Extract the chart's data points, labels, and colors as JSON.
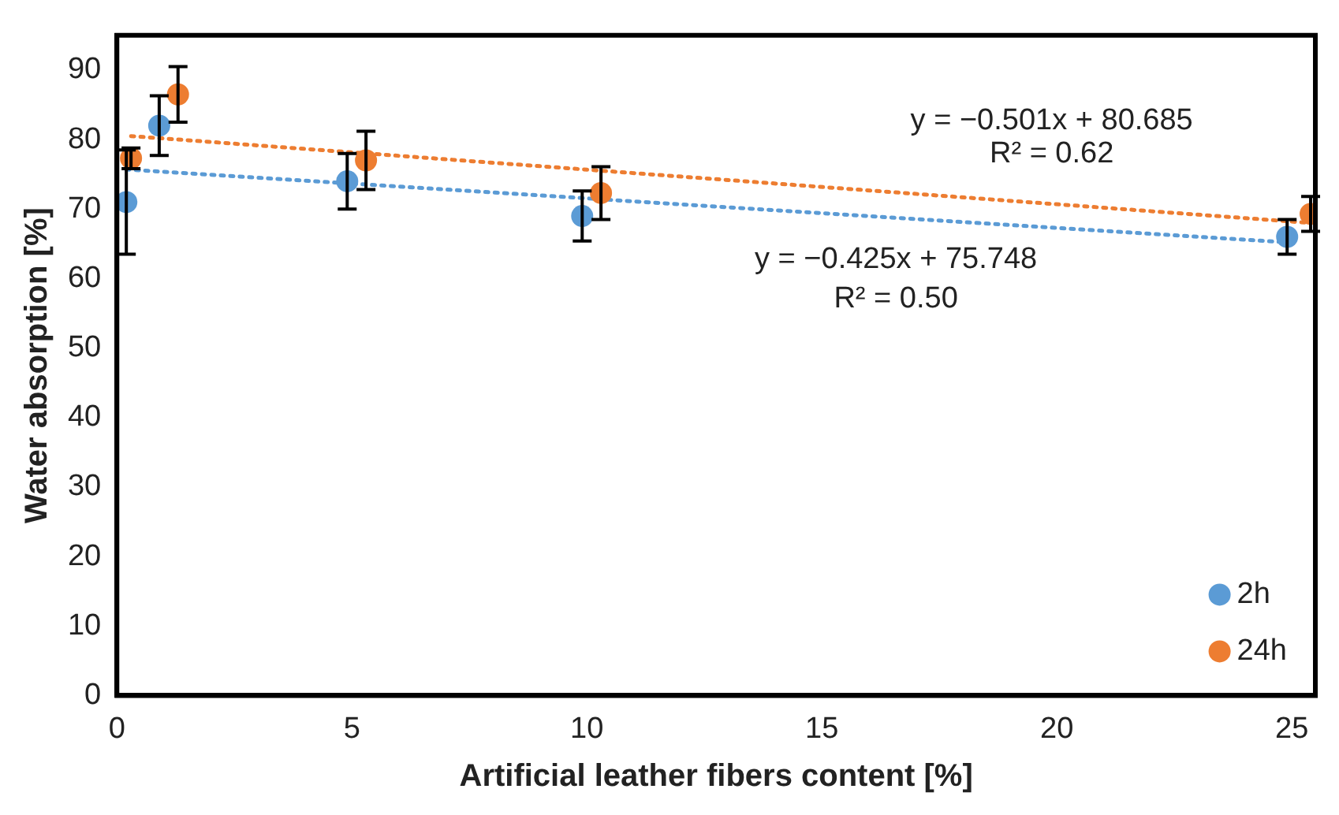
{
  "chart_data": {
    "type": "scatter",
    "xlabel": "Artificial leather fibers content [%]",
    "ylabel": "Water absorption [%]",
    "xlim": [
      0,
      25.5
    ],
    "xticks": [
      0,
      5,
      10,
      15,
      20,
      25
    ],
    "ylim": [
      0,
      95
    ],
    "yticks": [
      0,
      10,
      20,
      30,
      40,
      50,
      60,
      70,
      80,
      90
    ],
    "grid": false,
    "legend": "bottom right",
    "marker": "circle",
    "series": [
      {
        "name": "2h",
        "color": "#5b9bd5",
        "x": [
          0.2,
          0.9,
          4.9,
          9.9,
          24.9
        ],
        "values": [
          71,
          82,
          74,
          69,
          66
        ],
        "errors": [
          7.5,
          4.3,
          4,
          3.6,
          2.5
        ]
      },
      {
        "name": "24h",
        "color": "#ed7d31",
        "x": [
          0.3,
          1.3,
          5.3,
          10.3,
          25.4
        ],
        "values": [
          77.3,
          86.5,
          77,
          72.3,
          69.3
        ],
        "errors": [
          1.5,
          4,
          4.2,
          3.8,
          2.5
        ]
      },
      {
        "type": "line",
        "color": "#5b9bd5",
        "line_style": "dotted",
        "marker": "none",
        "x": [
          0.2,
          24.9
        ],
        "values": [
          75.7,
          65.2
        ]
      },
      {
        "type": "line",
        "color": "#ed7d31",
        "line_style": "dotted",
        "marker": "none",
        "x": [
          0.3,
          25.4
        ],
        "values": [
          80.5,
          68.0
        ]
      }
    ],
    "annotations": [
      "y = −0.501x + 80.685",
      "R² = 0.62",
      "y = −0.425x + 75.748",
      "R² = 0.50"
    ]
  }
}
